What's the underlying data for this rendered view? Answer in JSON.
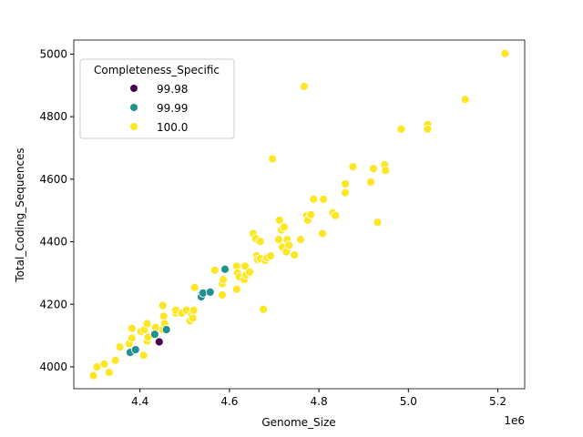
{
  "chart_data": {
    "type": "scatter",
    "title": "",
    "xlabel": "Genome_Size",
    "ylabel": "Total_Coding_Sequences",
    "x_offset_label": "1e6",
    "xlim": [
      4.252,
      5.26
    ],
    "ylim": [
      3930,
      5045
    ],
    "xticks": [
      "4.4",
      "4.6",
      "4.8",
      "5.0",
      "5.2"
    ],
    "yticks": [
      "4000",
      "4200",
      "4400",
      "4600",
      "4800",
      "5000"
    ],
    "grid": false,
    "legend": {
      "title": "Completeness_Specific",
      "placement": "upper-left",
      "entries": [
        {
          "label": "99.98",
          "color": "#440154"
        },
        {
          "label": "99.99",
          "color": "#21918c"
        },
        {
          "label": "100.0",
          "color": "#fde725"
        }
      ]
    },
    "series": [
      {
        "name": "100.0",
        "color": "#fde725",
        "points": [
          [
            4.296,
            3972
          ],
          [
            4.304,
            4000
          ],
          [
            4.32,
            4009
          ],
          [
            4.331,
            3982
          ],
          [
            4.345,
            4021
          ],
          [
            4.355,
            4064
          ],
          [
            4.376,
            4074
          ],
          [
            4.382,
            4092
          ],
          [
            4.382,
            4123
          ],
          [
            4.402,
            4113
          ],
          [
            4.408,
            4037
          ],
          [
            4.41,
            4119
          ],
          [
            4.416,
            4138
          ],
          [
            4.416,
            4083
          ],
          [
            4.418,
            4095
          ],
          [
            4.433,
            4110
          ],
          [
            4.435,
            4126
          ],
          [
            4.451,
            4119
          ],
          [
            4.451,
            4196
          ],
          [
            4.453,
            4162
          ],
          [
            4.455,
            4138
          ],
          [
            4.48,
            4172
          ],
          [
            4.48,
            4181
          ],
          [
            4.494,
            4172
          ],
          [
            4.504,
            4181
          ],
          [
            4.512,
            4147
          ],
          [
            4.516,
            4168
          ],
          [
            4.518,
            4156
          ],
          [
            4.52,
            4181
          ],
          [
            4.522,
            4254
          ],
          [
            4.567,
            4309
          ],
          [
            4.584,
            4266
          ],
          [
            4.584,
            4230
          ],
          [
            4.586,
            4279
          ],
          [
            4.616,
            4248
          ],
          [
            4.616,
            4322
          ],
          [
            4.618,
            4300
          ],
          [
            4.622,
            4288
          ],
          [
            4.633,
            4279
          ],
          [
            4.635,
            4322
          ],
          [
            4.637,
            4294
          ],
          [
            4.645,
            4303
          ],
          [
            4.653,
            4426
          ],
          [
            4.659,
            4410
          ],
          [
            4.661,
            4355
          ],
          [
            4.663,
            4343
          ],
          [
            4.669,
            4401
          ],
          [
            4.669,
            4346
          ],
          [
            4.676,
            4184
          ],
          [
            4.68,
            4340
          ],
          [
            4.684,
            4349
          ],
          [
            4.692,
            4355
          ],
          [
            4.696,
            4665
          ],
          [
            4.71,
            4407
          ],
          [
            4.712,
            4469
          ],
          [
            4.716,
            4438
          ],
          [
            4.718,
            4383
          ],
          [
            4.722,
            4447
          ],
          [
            4.727,
            4368
          ],
          [
            4.729,
            4407
          ],
          [
            4.733,
            4389
          ],
          [
            4.745,
            4358
          ],
          [
            4.759,
            4407
          ],
          [
            4.767,
            4897
          ],
          [
            4.773,
            4484
          ],
          [
            4.775,
            4469
          ],
          [
            4.782,
            4487
          ],
          [
            4.788,
            4536
          ],
          [
            4.808,
            4426
          ],
          [
            4.81,
            4536
          ],
          [
            4.831,
            4493
          ],
          [
            4.837,
            4484
          ],
          [
            4.859,
            4585
          ],
          [
            4.859,
            4557
          ],
          [
            4.876,
            4640
          ],
          [
            4.916,
            4591
          ],
          [
            4.922,
            4634
          ],
          [
            4.931,
            4462
          ],
          [
            4.947,
            4646
          ],
          [
            4.949,
            4628
          ],
          [
            4.984,
            4760
          ],
          [
            5.043,
            4775
          ],
          [
            5.043,
            4760
          ],
          [
            5.127,
            4855
          ],
          [
            5.216,
            5002
          ]
        ]
      },
      {
        "name": "99.99",
        "color": "#21918c",
        "points": [
          [
            4.378,
            4046
          ],
          [
            4.39,
            4055
          ],
          [
            4.433,
            4104
          ],
          [
            4.459,
            4119
          ],
          [
            4.537,
            4230
          ],
          [
            4.537,
            4224
          ],
          [
            4.541,
            4236
          ],
          [
            4.557,
            4239
          ],
          [
            4.59,
            4312
          ]
        ]
      },
      {
        "name": "99.98",
        "color": "#440154",
        "points": [
          [
            4.443,
            4080
          ]
        ]
      }
    ]
  }
}
